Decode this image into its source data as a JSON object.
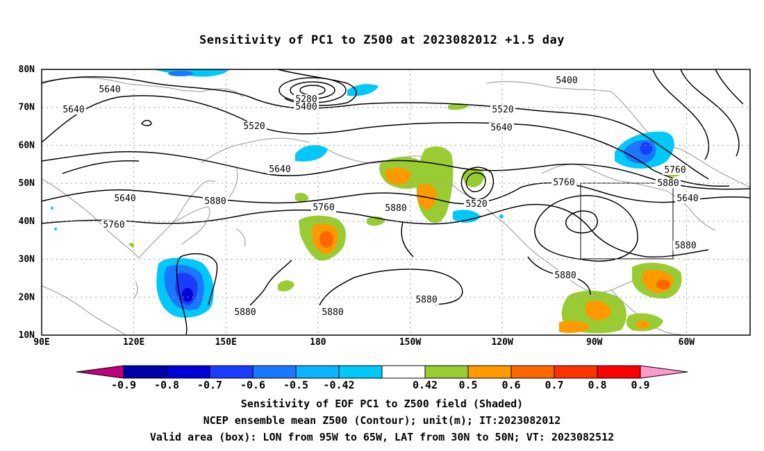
{
  "title": "Sensitivity of PC1 to Z500 at 2023082012 +1.5 day",
  "lat_labels": [
    "80N",
    "70N",
    "60N",
    "50N",
    "40N",
    "30N",
    "20N",
    "10N"
  ],
  "lon_labels": [
    "90E",
    "120E",
    "150E",
    "180",
    "150W",
    "120W",
    "90W",
    "60W"
  ],
  "contour_labels": [
    "5640",
    "5640",
    "5520",
    "5280",
    "5400",
    "5400",
    "5520",
    "5640",
    "5640",
    "5640",
    "5760",
    "5880",
    "5760",
    "5880",
    "5760",
    "5880",
    "5520",
    "5640",
    "5760",
    "5880",
    "5880",
    "5880",
    "5880",
    "5880"
  ],
  "colorbar": {
    "labels": [
      "-0.9",
      "-0.8",
      "-0.7",
      "-0.6",
      "-0.5",
      "-0.42",
      "0.42",
      "0.5",
      "0.6",
      "0.7",
      "0.8",
      "0.9"
    ],
    "colors": [
      "#c0007f",
      "#0000a8",
      "#0000d8",
      "#1a3cff",
      "#1a78ff",
      "#0ab4ff",
      "#00c8f8",
      "#ffffff",
      "#99cc33",
      "#ff9900",
      "#ff6600",
      "#ff3300",
      "#ff0000",
      "#ff99cc"
    ]
  },
  "footer": {
    "line1": "Sensitivity of EOF PC1 to Z500 field (Shaded)",
    "line2": "NCEP ensemble mean Z500 (Contour); unit(m); IT:2023082012",
    "line3": "Valid area (box): LON from 95W to 65W, LAT from 30N to 50N; VT: 2023082512"
  }
}
